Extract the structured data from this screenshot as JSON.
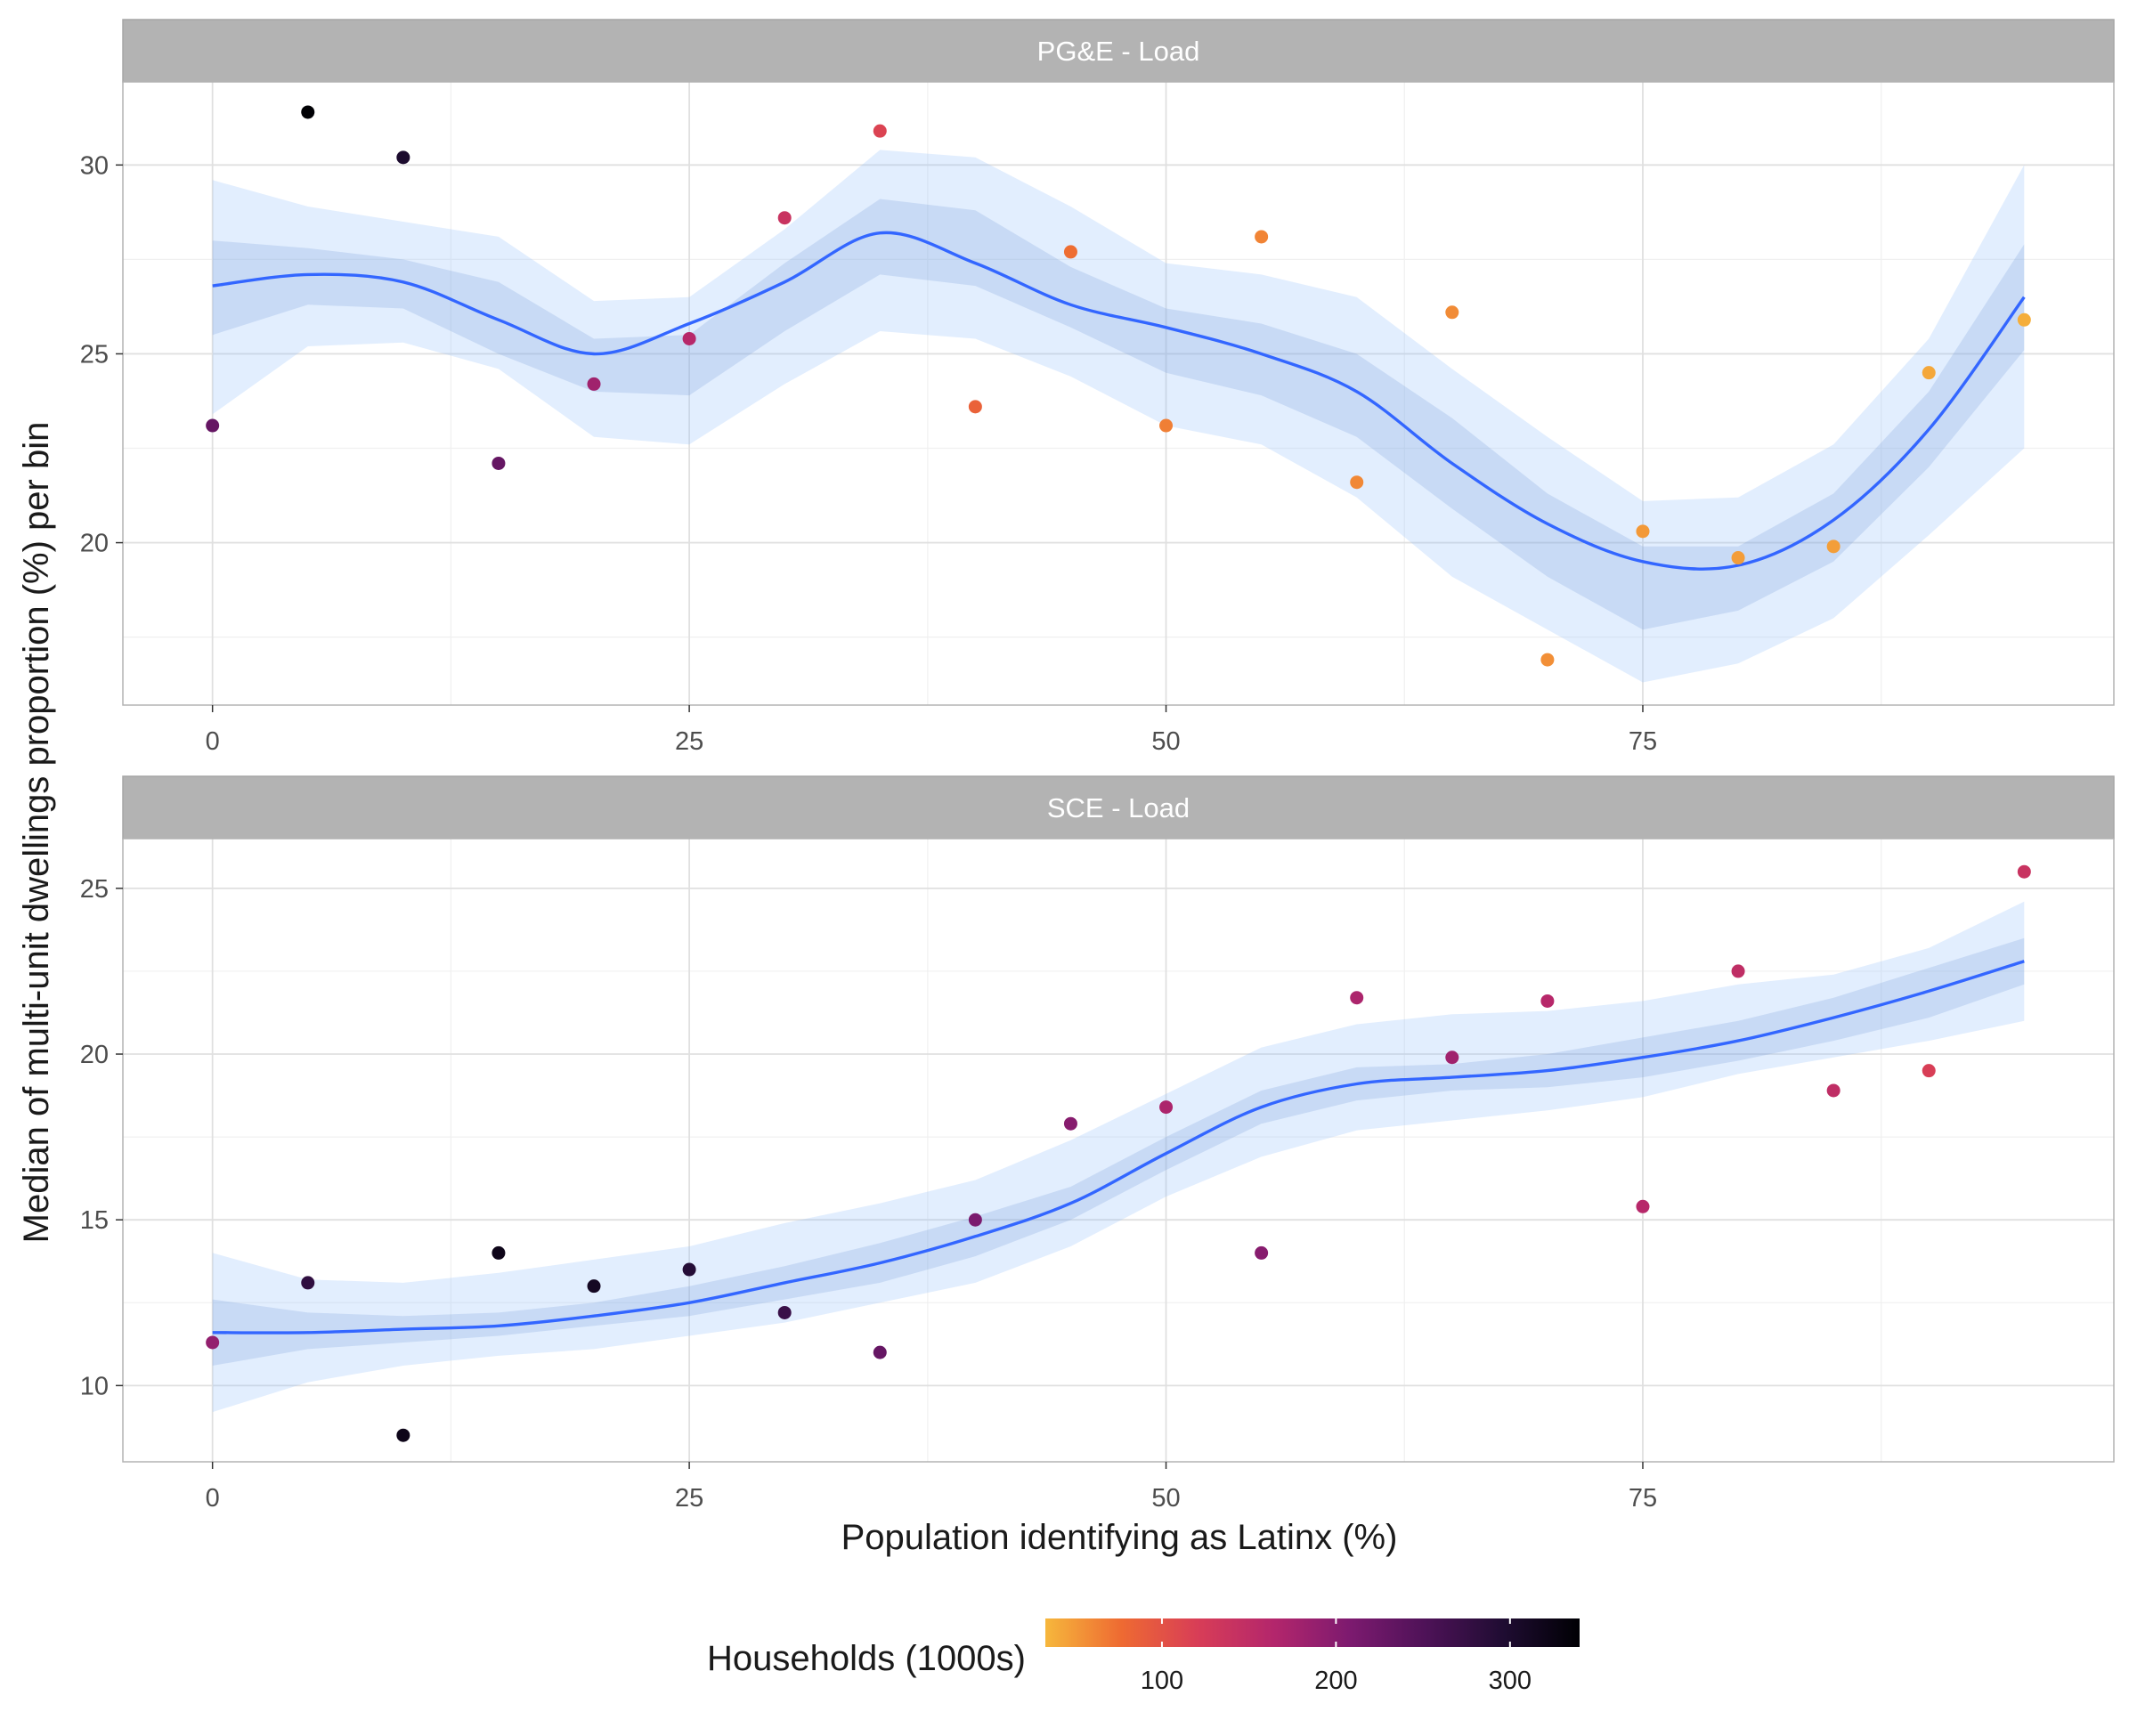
{
  "chart_data": {
    "type": "scatter",
    "xlabel": "Population identifying as Latinx (%)",
    "ylabel": "Median of multi-unit dwellings proportion (%) per bin",
    "x_ticks": [
      0,
      25,
      50,
      75
    ],
    "xlim": [
      -4.7,
      99.7
    ],
    "grid": true,
    "smoother": "loess fit with confidence bands",
    "legend": {
      "title": "Households (1000s)",
      "position": "bottom",
      "ticks": [
        100,
        200,
        300
      ],
      "range": [
        33,
        340
      ],
      "palette": [
        "#f6b73c",
        "#ee6a32",
        "#d83d57",
        "#b3266c",
        "#7c1a6f",
        "#4d1257",
        "#1f0c32",
        "#000004"
      ]
    },
    "panels": [
      {
        "title": "PG&E - Load",
        "ylim": [
          15.7,
          32.2
        ],
        "y_ticks": [
          20,
          25,
          30
        ],
        "points": [
          {
            "x": 0,
            "y": 23.1,
            "households": 230
          },
          {
            "x": 5,
            "y": 31.4,
            "households": 340
          },
          {
            "x": 10,
            "y": 30.2,
            "households": 300
          },
          {
            "x": 15,
            "y": 22.1,
            "households": 230
          },
          {
            "x": 20,
            "y": 24.2,
            "households": 180
          },
          {
            "x": 25,
            "y": 25.4,
            "households": 160
          },
          {
            "x": 30,
            "y": 28.6,
            "households": 140
          },
          {
            "x": 35,
            "y": 30.9,
            "households": 115
          },
          {
            "x": 40,
            "y": 23.6,
            "households": 85
          },
          {
            "x": 45,
            "y": 27.7,
            "households": 75
          },
          {
            "x": 50,
            "y": 23.1,
            "households": 65
          },
          {
            "x": 55,
            "y": 28.1,
            "households": 62
          },
          {
            "x": 60,
            "y": 21.6,
            "households": 60
          },
          {
            "x": 65,
            "y": 26.1,
            "households": 58
          },
          {
            "x": 70,
            "y": 16.9,
            "households": 56
          },
          {
            "x": 75,
            "y": 20.3,
            "households": 50
          },
          {
            "x": 80,
            "y": 19.6,
            "households": 48
          },
          {
            "x": 85,
            "y": 19.9,
            "households": 47
          },
          {
            "x": 90,
            "y": 24.5,
            "households": 42
          },
          {
            "x": 95,
            "y": 25.9,
            "households": 38
          }
        ],
        "fit": {
          "x": [
            0,
            5,
            10,
            15,
            20,
            25,
            30,
            35,
            40,
            45,
            50,
            55,
            60,
            65,
            70,
            75,
            80,
            85,
            90,
            95
          ],
          "y": [
            26.8,
            27.1,
            26.9,
            25.9,
            25.0,
            25.8,
            26.9,
            28.2,
            27.4,
            26.3,
            25.7,
            25.0,
            24.0,
            22.1,
            20.5,
            19.5,
            19.4,
            20.6,
            23.0,
            26.5
          ],
          "se_lower": [
            25.5,
            26.3,
            26.2,
            25.0,
            24.0,
            23.9,
            25.6,
            27.1,
            26.8,
            25.7,
            24.5,
            23.9,
            22.8,
            20.9,
            19.1,
            17.7,
            18.2,
            19.5,
            22.0,
            25.1
          ],
          "se_upper": [
            28.0,
            27.8,
            27.5,
            26.9,
            25.4,
            25.5,
            27.4,
            29.1,
            28.8,
            27.3,
            26.2,
            25.8,
            25.0,
            23.3,
            21.3,
            19.9,
            19.9,
            21.3,
            24.0,
            27.9
          ],
          "ci_lower": [
            23.4,
            25.2,
            25.3,
            24.6,
            22.8,
            22.6,
            24.2,
            25.6,
            25.4,
            24.4,
            23.1,
            22.6,
            21.2,
            19.1,
            17.7,
            16.3,
            16.8,
            18.0,
            20.2,
            22.5
          ],
          "ci_upper": [
            29.6,
            28.9,
            28.5,
            28.1,
            26.4,
            26.5,
            28.3,
            30.4,
            30.2,
            28.9,
            27.4,
            27.1,
            26.5,
            24.6,
            22.8,
            21.1,
            21.2,
            22.6,
            25.4,
            30.0
          ]
        }
      },
      {
        "title": "SCE - Load",
        "ylim": [
          7.7,
          26.5
        ],
        "y_ticks": [
          10,
          15,
          20,
          25
        ],
        "points": [
          {
            "x": 0,
            "y": 11.3,
            "households": 190
          },
          {
            "x": 5,
            "y": 13.1,
            "households": 280
          },
          {
            "x": 10,
            "y": 8.5,
            "households": 320
          },
          {
            "x": 15,
            "y": 14.0,
            "households": 320
          },
          {
            "x": 20,
            "y": 13.0,
            "households": 310
          },
          {
            "x": 25,
            "y": 13.5,
            "households": 290
          },
          {
            "x": 30,
            "y": 12.2,
            "households": 270
          },
          {
            "x": 35,
            "y": 11.0,
            "households": 230
          },
          {
            "x": 40,
            "y": 15.0,
            "households": 210
          },
          {
            "x": 45,
            "y": 17.9,
            "households": 200
          },
          {
            "x": 50,
            "y": 18.4,
            "households": 170
          },
          {
            "x": 55,
            "y": 14.0,
            "households": 200
          },
          {
            "x": 60,
            "y": 21.7,
            "households": 170
          },
          {
            "x": 65,
            "y": 19.9,
            "households": 180
          },
          {
            "x": 70,
            "y": 21.6,
            "households": 160
          },
          {
            "x": 75,
            "y": 15.4,
            "households": 160
          },
          {
            "x": 80,
            "y": 22.5,
            "households": 150
          },
          {
            "x": 85,
            "y": 18.9,
            "households": 150
          },
          {
            "x": 90,
            "y": 19.5,
            "households": 120
          },
          {
            "x": 95,
            "y": 25.5,
            "households": 140
          }
        ],
        "fit": {
          "x": [
            0,
            5,
            10,
            15,
            20,
            25,
            30,
            35,
            40,
            45,
            50,
            55,
            60,
            65,
            70,
            75,
            80,
            85,
            90,
            95
          ],
          "y": [
            11.6,
            11.6,
            11.7,
            11.8,
            12.1,
            12.5,
            13.1,
            13.7,
            14.5,
            15.5,
            17.0,
            18.4,
            19.1,
            19.3,
            19.5,
            19.9,
            20.4,
            21.1,
            21.9,
            22.8
          ],
          "se_lower": [
            10.6,
            11.1,
            11.3,
            11.5,
            11.8,
            12.1,
            12.6,
            13.1,
            13.9,
            15.0,
            16.5,
            17.9,
            18.6,
            18.9,
            19.0,
            19.3,
            19.8,
            20.4,
            21.1,
            22.1
          ],
          "se_upper": [
            12.6,
            12.2,
            12.1,
            12.2,
            12.5,
            13.0,
            13.6,
            14.3,
            15.1,
            16.0,
            17.5,
            18.9,
            19.6,
            19.7,
            20.0,
            20.5,
            21.0,
            21.7,
            22.6,
            23.5
          ],
          "ci_lower": [
            9.2,
            10.1,
            10.6,
            10.9,
            11.1,
            11.5,
            11.9,
            12.5,
            13.1,
            14.2,
            15.7,
            16.9,
            17.7,
            18.0,
            18.3,
            18.7,
            19.4,
            19.9,
            20.4,
            21.0
          ],
          "ci_upper": [
            14.0,
            13.2,
            13.1,
            13.4,
            13.8,
            14.2,
            14.9,
            15.5,
            16.2,
            17.4,
            18.8,
            20.2,
            20.9,
            21.2,
            21.3,
            21.6,
            22.1,
            22.4,
            23.2,
            24.6
          ]
        }
      }
    ]
  }
}
